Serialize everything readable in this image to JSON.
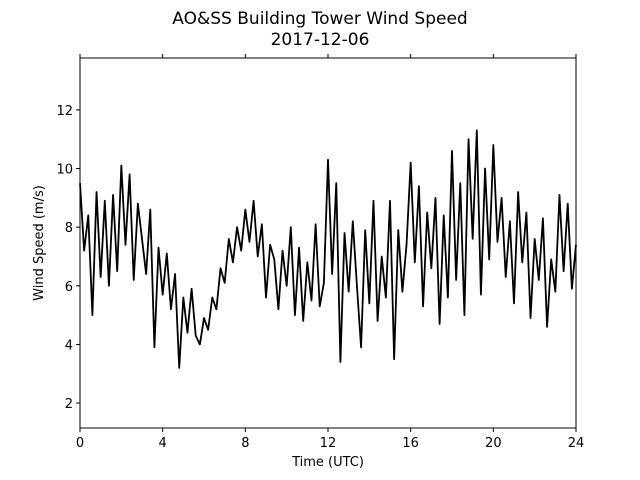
{
  "chart_data": {
    "type": "line",
    "title": "AO&SS Building Tower Wind Speed",
    "subtitle": "2017-12-06",
    "xlabel": "Time (UTC)",
    "ylabel": "Wind Speed (m/s)",
    "x": [
      0,
      0.2,
      0.4,
      0.6,
      0.8,
      1,
      1.2,
      1.4,
      1.6,
      1.8,
      2,
      2.2,
      2.4,
      2.6,
      2.8,
      3,
      3.2,
      3.4,
      3.6,
      3.8,
      4,
      4.2,
      4.4,
      4.6,
      4.8,
      5,
      5.2,
      5.4,
      5.6,
      5.8,
      6,
      6.2,
      6.4,
      6.6,
      6.8,
      7,
      7.2,
      7.4,
      7.6,
      7.8,
      8,
      8.2,
      8.4,
      8.6,
      8.8,
      9,
      9.2,
      9.4,
      9.6,
      9.8,
      10,
      10.2,
      10.4,
      10.6,
      10.8,
      11,
      11.2,
      11.4,
      11.6,
      11.8,
      12,
      12.2,
      12.4,
      12.6,
      12.8,
      13,
      13.2,
      13.4,
      13.6,
      13.8,
      14,
      14.2,
      14.4,
      14.6,
      14.8,
      15,
      15.2,
      15.4,
      15.6,
      15.8,
      16,
      16.2,
      16.4,
      16.6,
      16.8,
      17,
      17.2,
      17.4,
      17.6,
      17.8,
      18,
      18.2,
      18.4,
      18.6,
      18.8,
      19,
      19.2,
      19.4,
      19.6,
      19.8,
      20,
      20.2,
      20.4,
      20.6,
      20.8,
      21,
      21.2,
      21.4,
      21.6,
      21.8,
      22,
      22.2,
      22.4,
      22.6,
      22.8,
      23,
      23.2,
      23.4,
      23.6,
      23.8,
      24
    ],
    "series": [
      {
        "name": "Wind Speed",
        "color": "#000000",
        "values": [
          9.5,
          7.2,
          8.4,
          5.0,
          9.2,
          6.3,
          8.9,
          6.0,
          9.1,
          6.5,
          10.1,
          7.4,
          9.8,
          6.2,
          8.8,
          7.6,
          6.4,
          8.6,
          3.9,
          7.3,
          5.7,
          7.1,
          5.2,
          6.4,
          3.2,
          5.6,
          4.4,
          5.9,
          4.3,
          4.0,
          4.9,
          4.5,
          5.6,
          5.2,
          6.6,
          6.1,
          7.6,
          6.8,
          8.0,
          7.2,
          8.6,
          7.5,
          8.9,
          7.0,
          8.1,
          5.6,
          7.4,
          6.9,
          5.2,
          7.2,
          6.0,
          8.0,
          5.0,
          7.3,
          4.8,
          6.8,
          5.5,
          8.1,
          5.3,
          6.1,
          10.3,
          6.4,
          9.5,
          3.4,
          7.8,
          5.8,
          8.2,
          6.0,
          3.9,
          7.9,
          5.4,
          8.9,
          4.8,
          7.0,
          5.6,
          8.9,
          3.5,
          7.9,
          5.8,
          7.4,
          10.2,
          6.8,
          9.4,
          5.3,
          8.5,
          6.6,
          9.0,
          4.7,
          8.4,
          5.6,
          10.6,
          6.2,
          9.5,
          5.0,
          11.0,
          7.6,
          11.3,
          5.7,
          10.0,
          6.9,
          10.8,
          7.5,
          9.0,
          6.3,
          8.2,
          5.4,
          9.2,
          6.8,
          8.5,
          4.9,
          7.6,
          6.2,
          8.3,
          4.6,
          6.9,
          5.8,
          9.1,
          6.5,
          8.8,
          5.9,
          7.4
        ]
      }
    ],
    "xlim": [
      0,
      24
    ],
    "xticks": [
      0,
      4,
      8,
      12,
      16,
      20,
      24
    ],
    "ylim": [
      1.15,
      13.77
    ],
    "yticks": [
      2,
      4,
      6,
      8,
      10,
      12
    ],
    "grid": false
  }
}
